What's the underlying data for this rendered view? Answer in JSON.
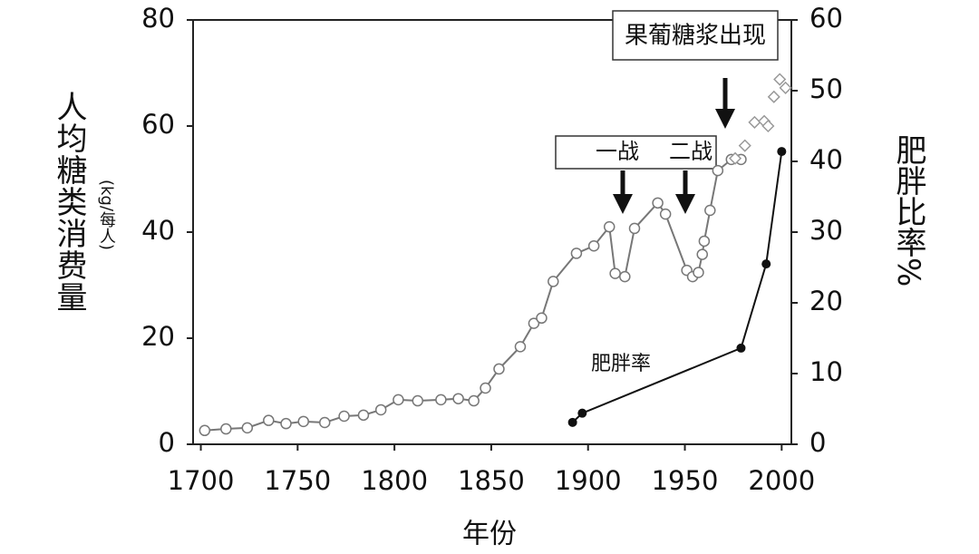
{
  "chart_data": {
    "type": "line",
    "x_label": "年份",
    "y_label": "人均糖类消费量",
    "y_unit": "(kg/每人)",
    "y2_label": "肥胖比率%",
    "xlim": [
      1696,
      2005
    ],
    "xticks": [
      1700,
      1750,
      1800,
      1850,
      1900,
      1950,
      2000
    ],
    "ylim": [
      0,
      80
    ],
    "yticks": [
      0,
      20,
      40,
      60,
      80
    ],
    "y2lim": [
      0,
      60
    ],
    "y2ticks": [
      0,
      10,
      20,
      30,
      40,
      50,
      60
    ],
    "series": [
      {
        "color": "#777777",
        "marker": "circle",
        "x": [
          1702,
          1713,
          1724,
          1735,
          1744,
          1753,
          1764,
          1774,
          1784,
          1793,
          1802,
          1812,
          1824,
          1833,
          1841,
          1847,
          1854,
          1865,
          1872,
          1876,
          1882,
          1894,
          1903,
          1911,
          1914,
          1919,
          1924,
          1936,
          1940,
          1951,
          1954,
          1957,
          1959,
          1960,
          1963,
          1967,
          1974,
          1979
        ],
        "values": [
          2.6,
          2.9,
          3.1,
          4.5,
          3.9,
          4.3,
          4.1,
          5.3,
          5.5,
          6.5,
          8.4,
          8.2,
          8.4,
          8.6,
          8.2,
          10.6,
          14.2,
          18.4,
          22.8,
          23.8,
          30.7,
          36,
          37.4,
          41,
          32.2,
          31.6,
          40.7,
          45.5,
          43.4,
          32.8,
          31.6,
          32.4,
          35.8,
          38.3,
          44.1,
          51.6,
          53.7,
          53.7
        ]
      },
      {
        "color": "#999999",
        "marker": "diamond",
        "x": [
          1976,
          1981,
          1986,
          1991,
          1993,
          1996,
          1999,
          2002
        ],
        "values": [
          53.9,
          56.3,
          60.7,
          60.9,
          60,
          65.5,
          68.8,
          67.2
        ]
      },
      {
        "name": "肥胖率",
        "color": "#111111",
        "marker": "dot",
        "axis": "y2",
        "x": [
          1892,
          1897,
          1979,
          1992,
          2000
        ],
        "values": [
          3.1,
          4.4,
          13.6,
          25.5,
          41.4
        ]
      }
    ],
    "annotations": [
      "果葡糖浆出现",
      "一战",
      "二战"
    ]
  }
}
